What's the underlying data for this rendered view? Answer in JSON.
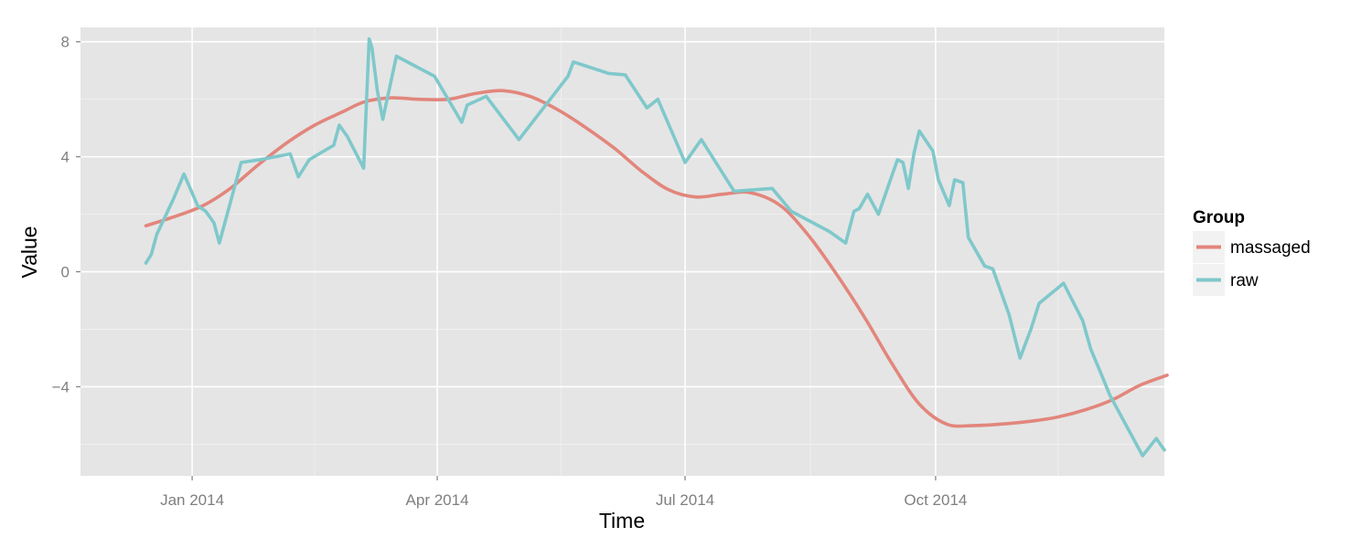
{
  "chart_data": {
    "type": "line",
    "xlabel": "Time",
    "ylabel": "Value",
    "x_tick_labels": [
      "Jan 2014",
      "Apr 2014",
      "Jul 2014",
      "Oct 2014"
    ],
    "x_tick_dates": [
      "2014-01-01",
      "2014-04-01",
      "2014-07-01",
      "2014-10-01"
    ],
    "y_tick_labels": [
      "−4",
      "0",
      "4",
      "8"
    ],
    "y_ticks": [
      -4,
      0,
      4,
      8
    ],
    "xlim": [
      "2013-11-21",
      "2014-12-24"
    ],
    "ylim": [
      -7.1,
      8.5
    ],
    "grid": true,
    "legend": {
      "title": "Group",
      "position": "right",
      "entries": [
        "massaged",
        "raw"
      ]
    },
    "colors": {
      "massaged": "#e2867c",
      "raw": "#7fc8cb",
      "panel": "#e5e5e5",
      "grid": "#ffffff"
    },
    "series": [
      {
        "name": "massaged",
        "points": [
          [
            "2013-12-15",
            1.6
          ],
          [
            "2013-12-25",
            1.9
          ],
          [
            "2014-01-05",
            2.3
          ],
          [
            "2014-01-15",
            2.9
          ],
          [
            "2014-01-25",
            3.7
          ],
          [
            "2014-02-05",
            4.5
          ],
          [
            "2014-02-15",
            5.1
          ],
          [
            "2014-02-25",
            5.55
          ],
          [
            "2014-03-05",
            5.9
          ],
          [
            "2014-03-15",
            6.05
          ],
          [
            "2014-03-25",
            6.0
          ],
          [
            "2014-04-05",
            6.0
          ],
          [
            "2014-04-15",
            6.2
          ],
          [
            "2014-04-25",
            6.3
          ],
          [
            "2014-05-05",
            6.1
          ],
          [
            "2014-05-15",
            5.65
          ],
          [
            "2014-05-25",
            5.05
          ],
          [
            "2014-06-05",
            4.3
          ],
          [
            "2014-06-15",
            3.5
          ],
          [
            "2014-06-25",
            2.85
          ],
          [
            "2014-07-05",
            2.6
          ],
          [
            "2014-07-15",
            2.7
          ],
          [
            "2014-07-25",
            2.75
          ],
          [
            "2014-08-05",
            2.3
          ],
          [
            "2014-08-15",
            1.3
          ],
          [
            "2014-08-25",
            0.0
          ],
          [
            "2014-09-05",
            -1.6
          ],
          [
            "2014-09-15",
            -3.2
          ],
          [
            "2014-09-25",
            -4.6
          ],
          [
            "2014-10-05",
            -5.3
          ],
          [
            "2014-10-15",
            -5.35
          ],
          [
            "2014-10-25",
            -5.3
          ],
          [
            "2014-11-05",
            -5.2
          ],
          [
            "2014-11-15",
            -5.05
          ],
          [
            "2014-11-25",
            -4.8
          ],
          [
            "2014-12-05",
            -4.45
          ],
          [
            "2014-12-15",
            -3.95
          ],
          [
            "2014-12-25",
            -3.6
          ]
        ]
      },
      {
        "name": "raw",
        "points": [
          [
            "2013-12-15",
            0.3
          ],
          [
            "2013-12-17",
            0.6
          ],
          [
            "2013-12-19",
            1.3
          ],
          [
            "2013-12-25",
            2.5
          ],
          [
            "2013-12-29",
            3.4
          ],
          [
            "2014-01-03",
            2.3
          ],
          [
            "2014-01-06",
            2.1
          ],
          [
            "2014-01-09",
            1.7
          ],
          [
            "2014-01-11",
            1.0
          ],
          [
            "2014-01-15",
            2.4
          ],
          [
            "2014-01-19",
            3.8
          ],
          [
            "2014-01-26",
            3.9
          ],
          [
            "2014-02-06",
            4.1
          ],
          [
            "2014-02-09",
            3.3
          ],
          [
            "2014-02-13",
            3.9
          ],
          [
            "2014-02-22",
            4.4
          ],
          [
            "2014-02-24",
            5.1
          ],
          [
            "2014-02-27",
            4.7
          ],
          [
            "2014-03-05",
            3.6
          ],
          [
            "2014-03-07",
            8.1
          ],
          [
            "2014-03-08",
            7.8
          ],
          [
            "2014-03-10",
            6.3
          ],
          [
            "2014-03-12",
            5.3
          ],
          [
            "2014-03-17",
            7.5
          ],
          [
            "2014-03-31",
            6.8
          ],
          [
            "2014-04-10",
            5.2
          ],
          [
            "2014-04-12",
            5.8
          ],
          [
            "2014-04-19",
            6.1
          ],
          [
            "2014-05-01",
            4.6
          ],
          [
            "2014-05-19",
            6.8
          ],
          [
            "2014-05-21",
            7.3
          ],
          [
            "2014-06-03",
            6.9
          ],
          [
            "2014-06-09",
            6.85
          ],
          [
            "2014-06-17",
            5.7
          ],
          [
            "2014-06-21",
            6.0
          ],
          [
            "2014-07-01",
            3.8
          ],
          [
            "2014-07-07",
            4.6
          ],
          [
            "2014-07-19",
            2.8
          ],
          [
            "2014-08-02",
            2.9
          ],
          [
            "2014-08-09",
            2.1
          ],
          [
            "2014-08-23",
            1.4
          ],
          [
            "2014-08-29",
            1.0
          ],
          [
            "2014-09-01",
            2.1
          ],
          [
            "2014-09-03",
            2.2
          ],
          [
            "2014-09-06",
            2.7
          ],
          [
            "2014-09-10",
            2.0
          ],
          [
            "2014-09-17",
            3.9
          ],
          [
            "2014-09-19",
            3.8
          ],
          [
            "2014-09-21",
            2.9
          ],
          [
            "2014-09-23",
            4.1
          ],
          [
            "2014-09-25",
            4.9
          ],
          [
            "2014-09-30",
            4.2
          ],
          [
            "2014-10-02",
            3.2
          ],
          [
            "2014-10-06",
            2.3
          ],
          [
            "2014-10-08",
            3.2
          ],
          [
            "2014-10-11",
            3.1
          ],
          [
            "2014-10-13",
            1.2
          ],
          [
            "2014-10-19",
            0.2
          ],
          [
            "2014-10-22",
            0.1
          ],
          [
            "2014-10-25",
            -0.7
          ],
          [
            "2014-10-28",
            -1.5
          ],
          [
            "2014-11-01",
            -3.0
          ],
          [
            "2014-11-05",
            -2.0
          ],
          [
            "2014-11-08",
            -1.1
          ],
          [
            "2014-11-17",
            -0.4
          ],
          [
            "2014-11-24",
            -1.7
          ],
          [
            "2014-11-27",
            -2.7
          ],
          [
            "2014-12-01",
            -3.6
          ],
          [
            "2014-12-04",
            -4.3
          ],
          [
            "2014-12-16",
            -6.4
          ],
          [
            "2014-12-21",
            -5.8
          ],
          [
            "2014-12-24",
            -6.2
          ]
        ]
      }
    ]
  }
}
